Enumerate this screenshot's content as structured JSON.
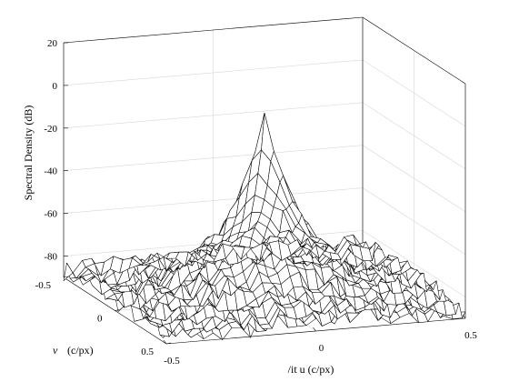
{
  "chart_data": {
    "type": "surface",
    "title": "",
    "zlabel": "Spectral Density (dB)",
    "xlabel": "/it u  (c/px)",
    "ylabel_symbol": "v",
    "ylabel_unit": "(c/px)",
    "xlim": [
      -0.5,
      0.5
    ],
    "ylim": [
      -0.5,
      0.5
    ],
    "zlim": [
      -90,
      20
    ],
    "x_ticks": [
      "-0.5",
      "0",
      "0.5"
    ],
    "y_ticks": [
      "-0.5",
      "0",
      "0.5"
    ],
    "z_ticks": [
      "20",
      "0",
      "-20",
      "-40",
      "-60",
      "-80"
    ],
    "grid": true,
    "surface": {
      "grid_size": 33,
      "peak_level_db": -5,
      "floor_level_db": -87,
      "peak_location": [
        0,
        0
      ],
      "noise_amplitude_db": 5
    },
    "colors": {
      "mesh_edge": "#000000",
      "mesh_face": "#ffffff",
      "grid": "#d6d6d6"
    }
  }
}
